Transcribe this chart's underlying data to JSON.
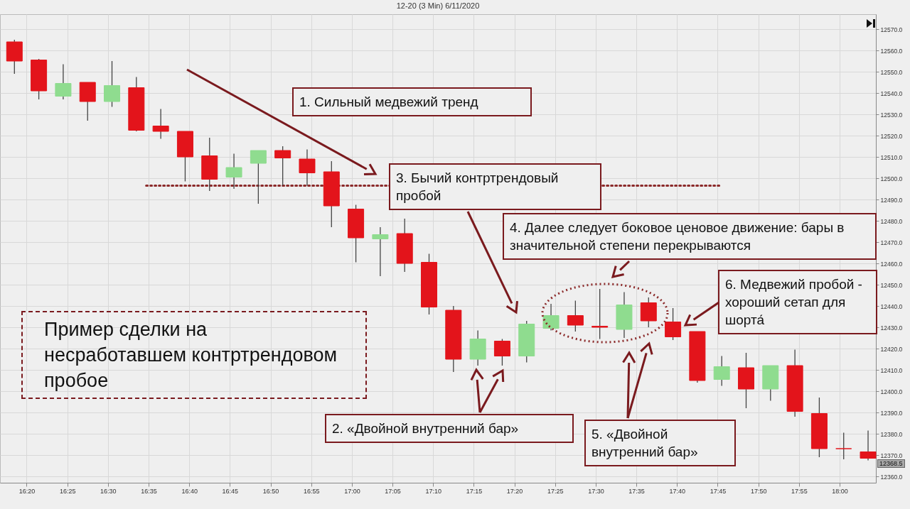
{
  "chart_data": {
    "type": "candlestick",
    "title": "12-20 (3 Min) 6/11/2020",
    "x": [
      16.3083,
      16.3583,
      16.4083,
      16.4583,
      16.5083,
      16.5583,
      16.6083,
      16.6583,
      16.7083,
      16.7583,
      16.8083,
      16.8583,
      16.9083,
      16.9583,
      17.0083,
      17.0583,
      17.1083,
      17.1583,
      17.2083,
      17.2583,
      17.3083,
      17.3583,
      17.4083,
      17.4583,
      17.5083,
      17.5583,
      17.6083,
      17.6583,
      17.7083,
      17.7583,
      17.8083,
      17.8583,
      17.9083,
      17.9583,
      18.0083,
      18.0583
    ],
    "ohlc": [
      [
        12564,
        12565,
        12549,
        12555
      ],
      [
        12555.5,
        12556,
        12537,
        12541
      ],
      [
        12538.5,
        12553.5,
        12537,
        12544.5
      ],
      [
        12545,
        12545,
        12527,
        12536
      ],
      [
        12536,
        12555,
        12533.5,
        12543.5
      ],
      [
        12542.5,
        12547.5,
        12522,
        12522.5
      ],
      [
        12524.5,
        12532.5,
        12518.5,
        12522
      ],
      [
        12522,
        12522,
        12498.5,
        12510
      ],
      [
        12510.5,
        12519,
        12494,
        12499.5
      ],
      [
        12500.5,
        12511.5,
        12495,
        12505
      ],
      [
        12507,
        12513,
        12488,
        12513
      ],
      [
        12513,
        12515,
        12496.5,
        12509.5
      ],
      [
        12509,
        12513.5,
        12496.5,
        12502.5
      ],
      [
        12503,
        12508,
        12477,
        12487
      ],
      [
        12485.5,
        12487.5,
        12460.5,
        12472
      ],
      [
        12471.5,
        12477,
        12454,
        12473.5
      ],
      [
        12474,
        12481,
        12456,
        12460
      ],
      [
        12460.5,
        12464.5,
        12436,
        12439.5
      ],
      [
        12438,
        12440,
        12409,
        12415
      ],
      [
        12415,
        12428.5,
        12412,
        12424.5
      ],
      [
        12423.5,
        12424.5,
        12412,
        12416.5
      ],
      [
        12416.5,
        12433,
        12413.5,
        12431.5
      ],
      [
        12429.5,
        12441,
        12428.5,
        12435.5
      ],
      [
        12435.5,
        12442.5,
        12428,
        12431
      ],
      [
        12430.5,
        12448,
        12424.5,
        12430
      ],
      [
        12429,
        12446.5,
        12425,
        12440.5
      ],
      [
        12441.5,
        12444,
        12430,
        12433
      ],
      [
        12432.5,
        12439,
        12424,
        12425.5
      ],
      [
        12428,
        12428,
        12404,
        12405
      ],
      [
        12405.5,
        12416.5,
        12402.5,
        12411.5
      ],
      [
        12411,
        12418,
        12392,
        12401
      ],
      [
        12401,
        12412,
        12395.5,
        12412
      ],
      [
        12412,
        12419.5,
        12388,
        12390.5
      ],
      [
        12389.5,
        12397,
        12369,
        12373
      ],
      [
        12373,
        12380.5,
        12368,
        12373
      ],
      [
        12371.5,
        12381.5,
        12367.5,
        12368.5
      ]
    ],
    "colors": [
      "#e3141b",
      "#e3141b",
      "#8fdc8f",
      "#e3141b",
      "#8fdc8f",
      "#e3141b",
      "#e3141b",
      "#e3141b",
      "#e3141b",
      "#8fdc8f",
      "#8fdc8f",
      "#e3141b",
      "#e3141b",
      "#e3141b",
      "#e3141b",
      "#8fdc8f",
      "#e3141b",
      "#e3141b",
      "#e3141b",
      "#8fdc8f",
      "#e3141b",
      "#8fdc8f",
      "#8fdc8f",
      "#e3141b",
      "#e3141b",
      "#8fdc8f",
      "#e3141b",
      "#e3141b",
      "#e3141b",
      "#8fdc8f",
      "#e3141b",
      "#8fdc8f",
      "#e3141b",
      "#e3141b",
      "#e3141b",
      "#e3141b"
    ],
    "series": [
      {
        "type": "line",
        "x": [
          16.5784,
          17.7563
        ],
        "values": [
          12496.5,
          12496.5
        ],
        "color": "#8b2a2a",
        "line_style": "dotted"
      }
    ],
    "xlim": [
      16.286,
      18.067
    ],
    "xticks": [
      {
        "value": 16.3333,
        "label": "16:20"
      },
      {
        "value": 16.4167,
        "label": "16:25"
      },
      {
        "value": 16.5,
        "label": "16:30"
      },
      {
        "value": 16.5833,
        "label": "16:35"
      },
      {
        "value": 16.6667,
        "label": "16:40"
      },
      {
        "value": 16.75,
        "label": "16:45"
      },
      {
        "value": 16.8333,
        "label": "16:50"
      },
      {
        "value": 16.9167,
        "label": "16:55"
      },
      {
        "value": 17,
        "label": "17:00"
      },
      {
        "value": 17.0833,
        "label": "17:05"
      },
      {
        "value": 17.1667,
        "label": "17:10"
      },
      {
        "value": 17.25,
        "label": "17:15"
      },
      {
        "value": 17.3333,
        "label": "17:20"
      },
      {
        "value": 17.4167,
        "label": "17:25"
      },
      {
        "value": 17.5,
        "label": "17:30"
      },
      {
        "value": 17.5833,
        "label": "17:35"
      },
      {
        "value": 17.6667,
        "label": "17:40"
      },
      {
        "value": 17.75,
        "label": "17:45"
      },
      {
        "value": 17.8333,
        "label": "17:50"
      },
      {
        "value": 17.9167,
        "label": "17:55"
      },
      {
        "value": 18,
        "label": "18:00"
      }
    ],
    "ylim": [
      12357,
      12577
    ],
    "yticks": [
      {
        "value": 12360,
        "label": "12360.0"
      },
      {
        "value": 12370,
        "label": "12370.0"
      },
      {
        "value": 12380,
        "label": "12380.0"
      },
      {
        "value": 12390,
        "label": "12390.0"
      },
      {
        "value": 12400,
        "label": "12400.0"
      },
      {
        "value": 12410,
        "label": "12410.0"
      },
      {
        "value": 12420,
        "label": "12420.0"
      },
      {
        "value": 12430,
        "label": "12430.0"
      },
      {
        "value": 12440,
        "label": "12440.0"
      },
      {
        "value": 12450,
        "label": "12450.0"
      },
      {
        "value": 12460,
        "label": "12460.0"
      },
      {
        "value": 12470,
        "label": "12470.0"
      },
      {
        "value": 12480,
        "label": "12480.0"
      },
      {
        "value": 12490,
        "label": "12490.0"
      },
      {
        "value": 12500,
        "label": "12500.0"
      },
      {
        "value": 12510,
        "label": "12510.0"
      },
      {
        "value": 12520,
        "label": "12520.0"
      },
      {
        "value": 12530,
        "label": "12530.0"
      },
      {
        "value": 12540,
        "label": "12540.0"
      },
      {
        "value": 12550,
        "label": "12550.0"
      },
      {
        "value": 12560,
        "label": "12560.0"
      },
      {
        "value": 12570,
        "label": "12570.0"
      }
    ],
    "grid": true,
    "annotations": [
      "1. Сильный медвежий тренд",
      "2. «Двойной внутренний бар»",
      "3. Бычий контртрендовый пробой",
      "4. Далее следует боковое ценовое движение: бары в значительной степени перекрываются",
      "5. «Двойной внутренний бар»",
      "6. Медвежий пробой - хороший сетап для шорта́",
      "Пример сделки на несработавшем контртрендовом пробое",
      {
        "text": "12368.5",
        "x": 18.0583,
        "y": 12368.5
      }
    ]
  }
}
